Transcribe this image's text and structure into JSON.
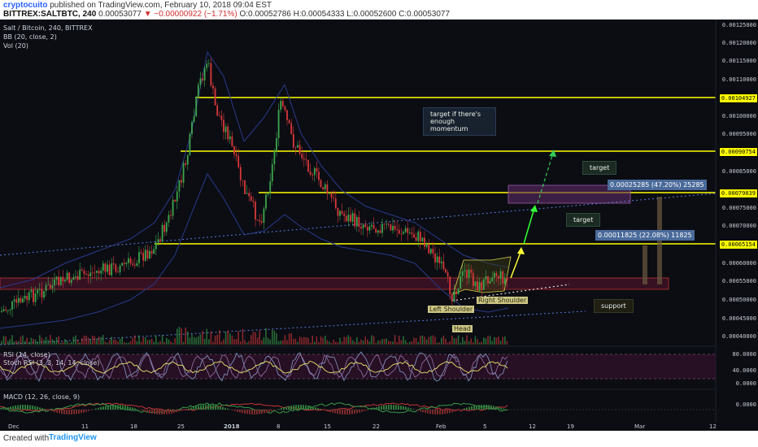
{
  "header": {
    "author": "cryptocuito",
    "published": "published on TradingView.com, February 10, 2018 09:04 EST",
    "symbol": "BITTREX:SALTBTC, 240",
    "last": "0.00053077",
    "change": "▼ −0.00000922 (−1.71%)",
    "ohlc": "O:0.00052786 H:0.00054333 L:0.00052600 C:0.00053077"
  },
  "legends": {
    "title": "Salt / Bitcoin, 240, BITTREX",
    "bb": "BB (20, close, 2)",
    "vol": "Vol (20)",
    "rsi": "RSI (14, close)",
    "stoch": "Stoch RSI (3, 3, 14, 14, close)",
    "macd": "MACD (12, 26, close, 9)"
  },
  "price_axis": [
    "0.00125000",
    "0.00120000",
    "0.00115000",
    "0.00110000",
    "0.00105000",
    "0.00100000",
    "0.00095000",
    "0.00090000",
    "0.00085000",
    "0.00080000",
    "0.00075000",
    "0.00070000",
    "0.00065000",
    "0.00060000",
    "0.00055000",
    "0.00050000",
    "0.00045000",
    "0.00040000"
  ],
  "level_labels": [
    "0.00104927",
    "0.00090754",
    "0.00079039",
    "0.00065154"
  ],
  "rsi_axis": [
    "80.0000",
    "40.0000",
    "0.0000"
  ],
  "macd_axis": [
    "0.0000"
  ],
  "date_axis": [
    "Dec",
    "11",
    "18",
    "25",
    "2018",
    "8",
    "15",
    "22",
    "Feb",
    "5",
    "12",
    "19",
    "Mar",
    "12"
  ],
  "annotations": {
    "target_momentum": "target if there's enough momentum",
    "target1": "target",
    "target2": "target",
    "support": "support",
    "left_shoulder": "Left Shoulder",
    "head": "Head",
    "right_shoulder": "Right Shoulder",
    "measure1": "0.00025285 (47.20%) 25285",
    "measure2": "0.00011825 (22.08%) 11825"
  },
  "footer": {
    "created_with": "Created with",
    "brand": "TradingView"
  },
  "colors": {
    "background": "#0b0d13",
    "level_line": "#ffff00",
    "up_candle": "#3ca64c",
    "down_candle": "#d9383a",
    "bb_band": "#2b3a8a",
    "rsi_line": "#e8e36a",
    "zone": "#6b1a3a"
  }
}
